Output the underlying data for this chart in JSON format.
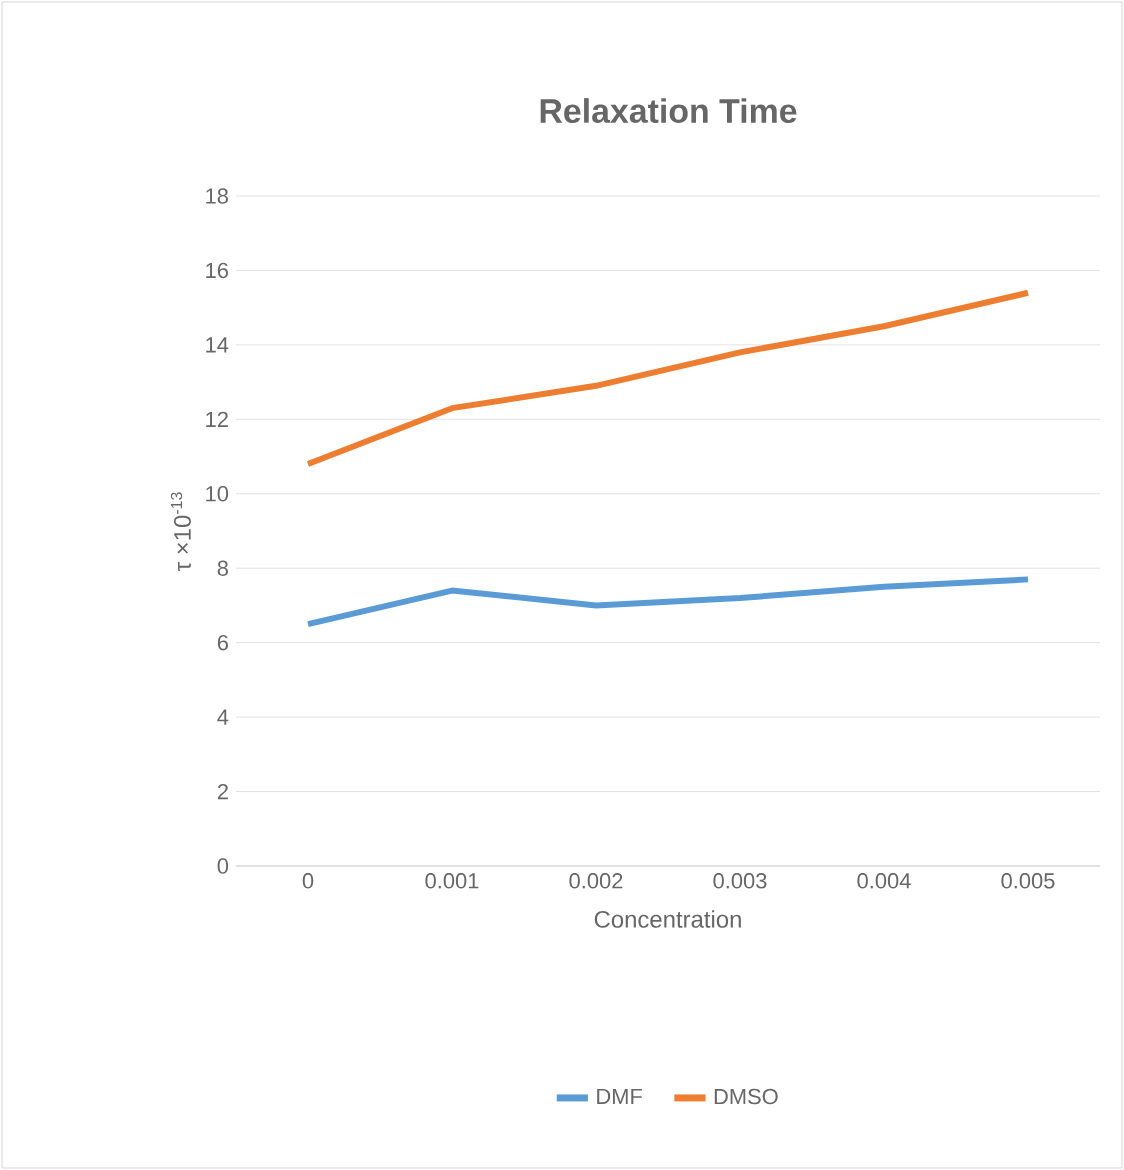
{
  "chart_data": {
    "type": "line",
    "title": "Relaxation Time",
    "xlabel": "Concentration",
    "ylabel": "τ ×10$^{-13}$",
    "categories": [
      "0",
      "0.001",
      "0.002",
      "0.003",
      "0.004",
      "0.005"
    ],
    "series": [
      {
        "name": "DMF",
        "color": "#5b9bd5",
        "values": [
          6.5,
          7.4,
          7.0,
          7.2,
          7.5,
          7.7
        ]
      },
      {
        "name": "DMSO",
        "color": "#ed7d31",
        "values": [
          10.8,
          12.3,
          12.9,
          13.8,
          14.5,
          15.4
        ]
      }
    ],
    "ylim": [
      0,
      18
    ],
    "yticks": [
      0,
      2,
      4,
      6,
      8,
      10,
      12,
      14,
      16,
      18
    ],
    "grid": "y",
    "legend": "bottom",
    "marker": "none",
    "line_style": "solid"
  }
}
